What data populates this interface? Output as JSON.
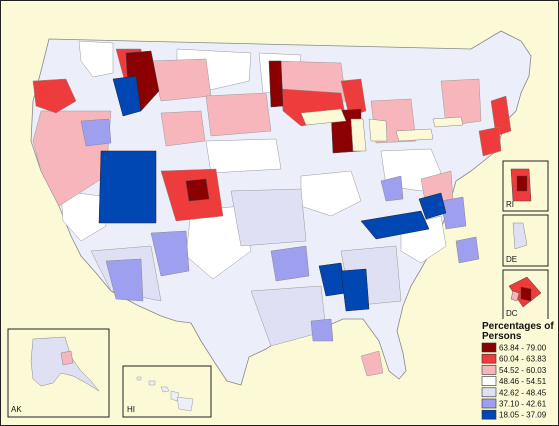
{
  "legend": {
    "title_line1": "Percentages of",
    "title_line2": "Persons",
    "classes": [
      {
        "label": "63.84 - 79.00",
        "color": "#8b0000"
      },
      {
        "label": "60.04 - 63.83",
        "color": "#ee3b3b"
      },
      {
        "label": "54.52 - 60.03",
        "color": "#f7b6bb"
      },
      {
        "label": "48.46 - 54.51",
        "color": "#ffffff"
      },
      {
        "label": "42.62 - 48.45",
        "color": "#dfe0f4"
      },
      {
        "label": "37.10 - 42.61",
        "color": "#9f9ff0"
      },
      {
        "label": "18.05 - 37.09",
        "color": "#0047b3"
      }
    ]
  },
  "insets": {
    "ak": "AK",
    "hi": "HI",
    "ri": "RI",
    "de": "DE",
    "dc": "DC"
  }
}
